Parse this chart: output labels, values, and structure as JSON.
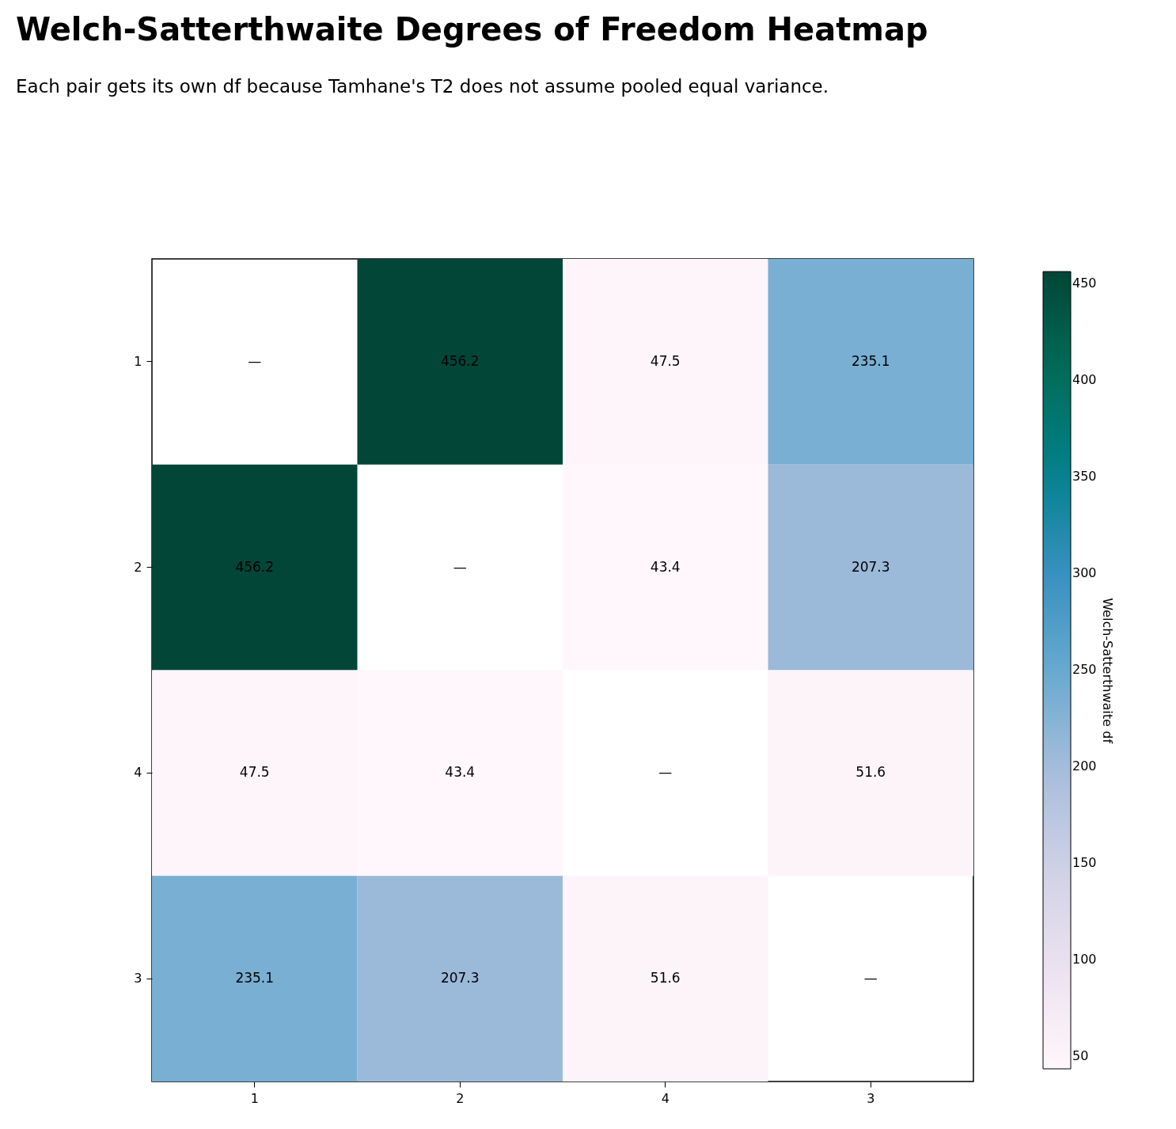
{
  "chart_data": {
    "type": "heatmap",
    "title": "Welch-Satterthwaite Degrees of Freedom Heatmap",
    "subtitle": "Each pair gets its own df because Tamhane's T2 does not assume pooled equal variance.",
    "clabel": "Welch-Satterthwaite df",
    "categories": [
      "1",
      "2",
      "4",
      "3"
    ],
    "y_categories": [
      "1",
      "2",
      "4",
      "3"
    ],
    "cells": [
      [
        null,
        456.2,
        47.5,
        235.1
      ],
      [
        456.2,
        null,
        43.4,
        207.3
      ],
      [
        47.5,
        43.4,
        null,
        51.6
      ],
      [
        235.1,
        207.3,
        51.6,
        null
      ]
    ],
    "cell_labels": [
      [
        "—",
        "456.2",
        "47.5",
        "235.1"
      ],
      [
        "456.2",
        "—",
        "43.4",
        "207.3"
      ],
      [
        "47.5",
        "43.4",
        "—",
        "51.6"
      ],
      [
        "235.1",
        "207.3",
        "51.6",
        "—"
      ]
    ],
    "clim": [
      43.4,
      456.2
    ],
    "cticks": [
      50,
      100,
      150,
      200,
      250,
      300,
      350,
      400,
      450
    ]
  }
}
